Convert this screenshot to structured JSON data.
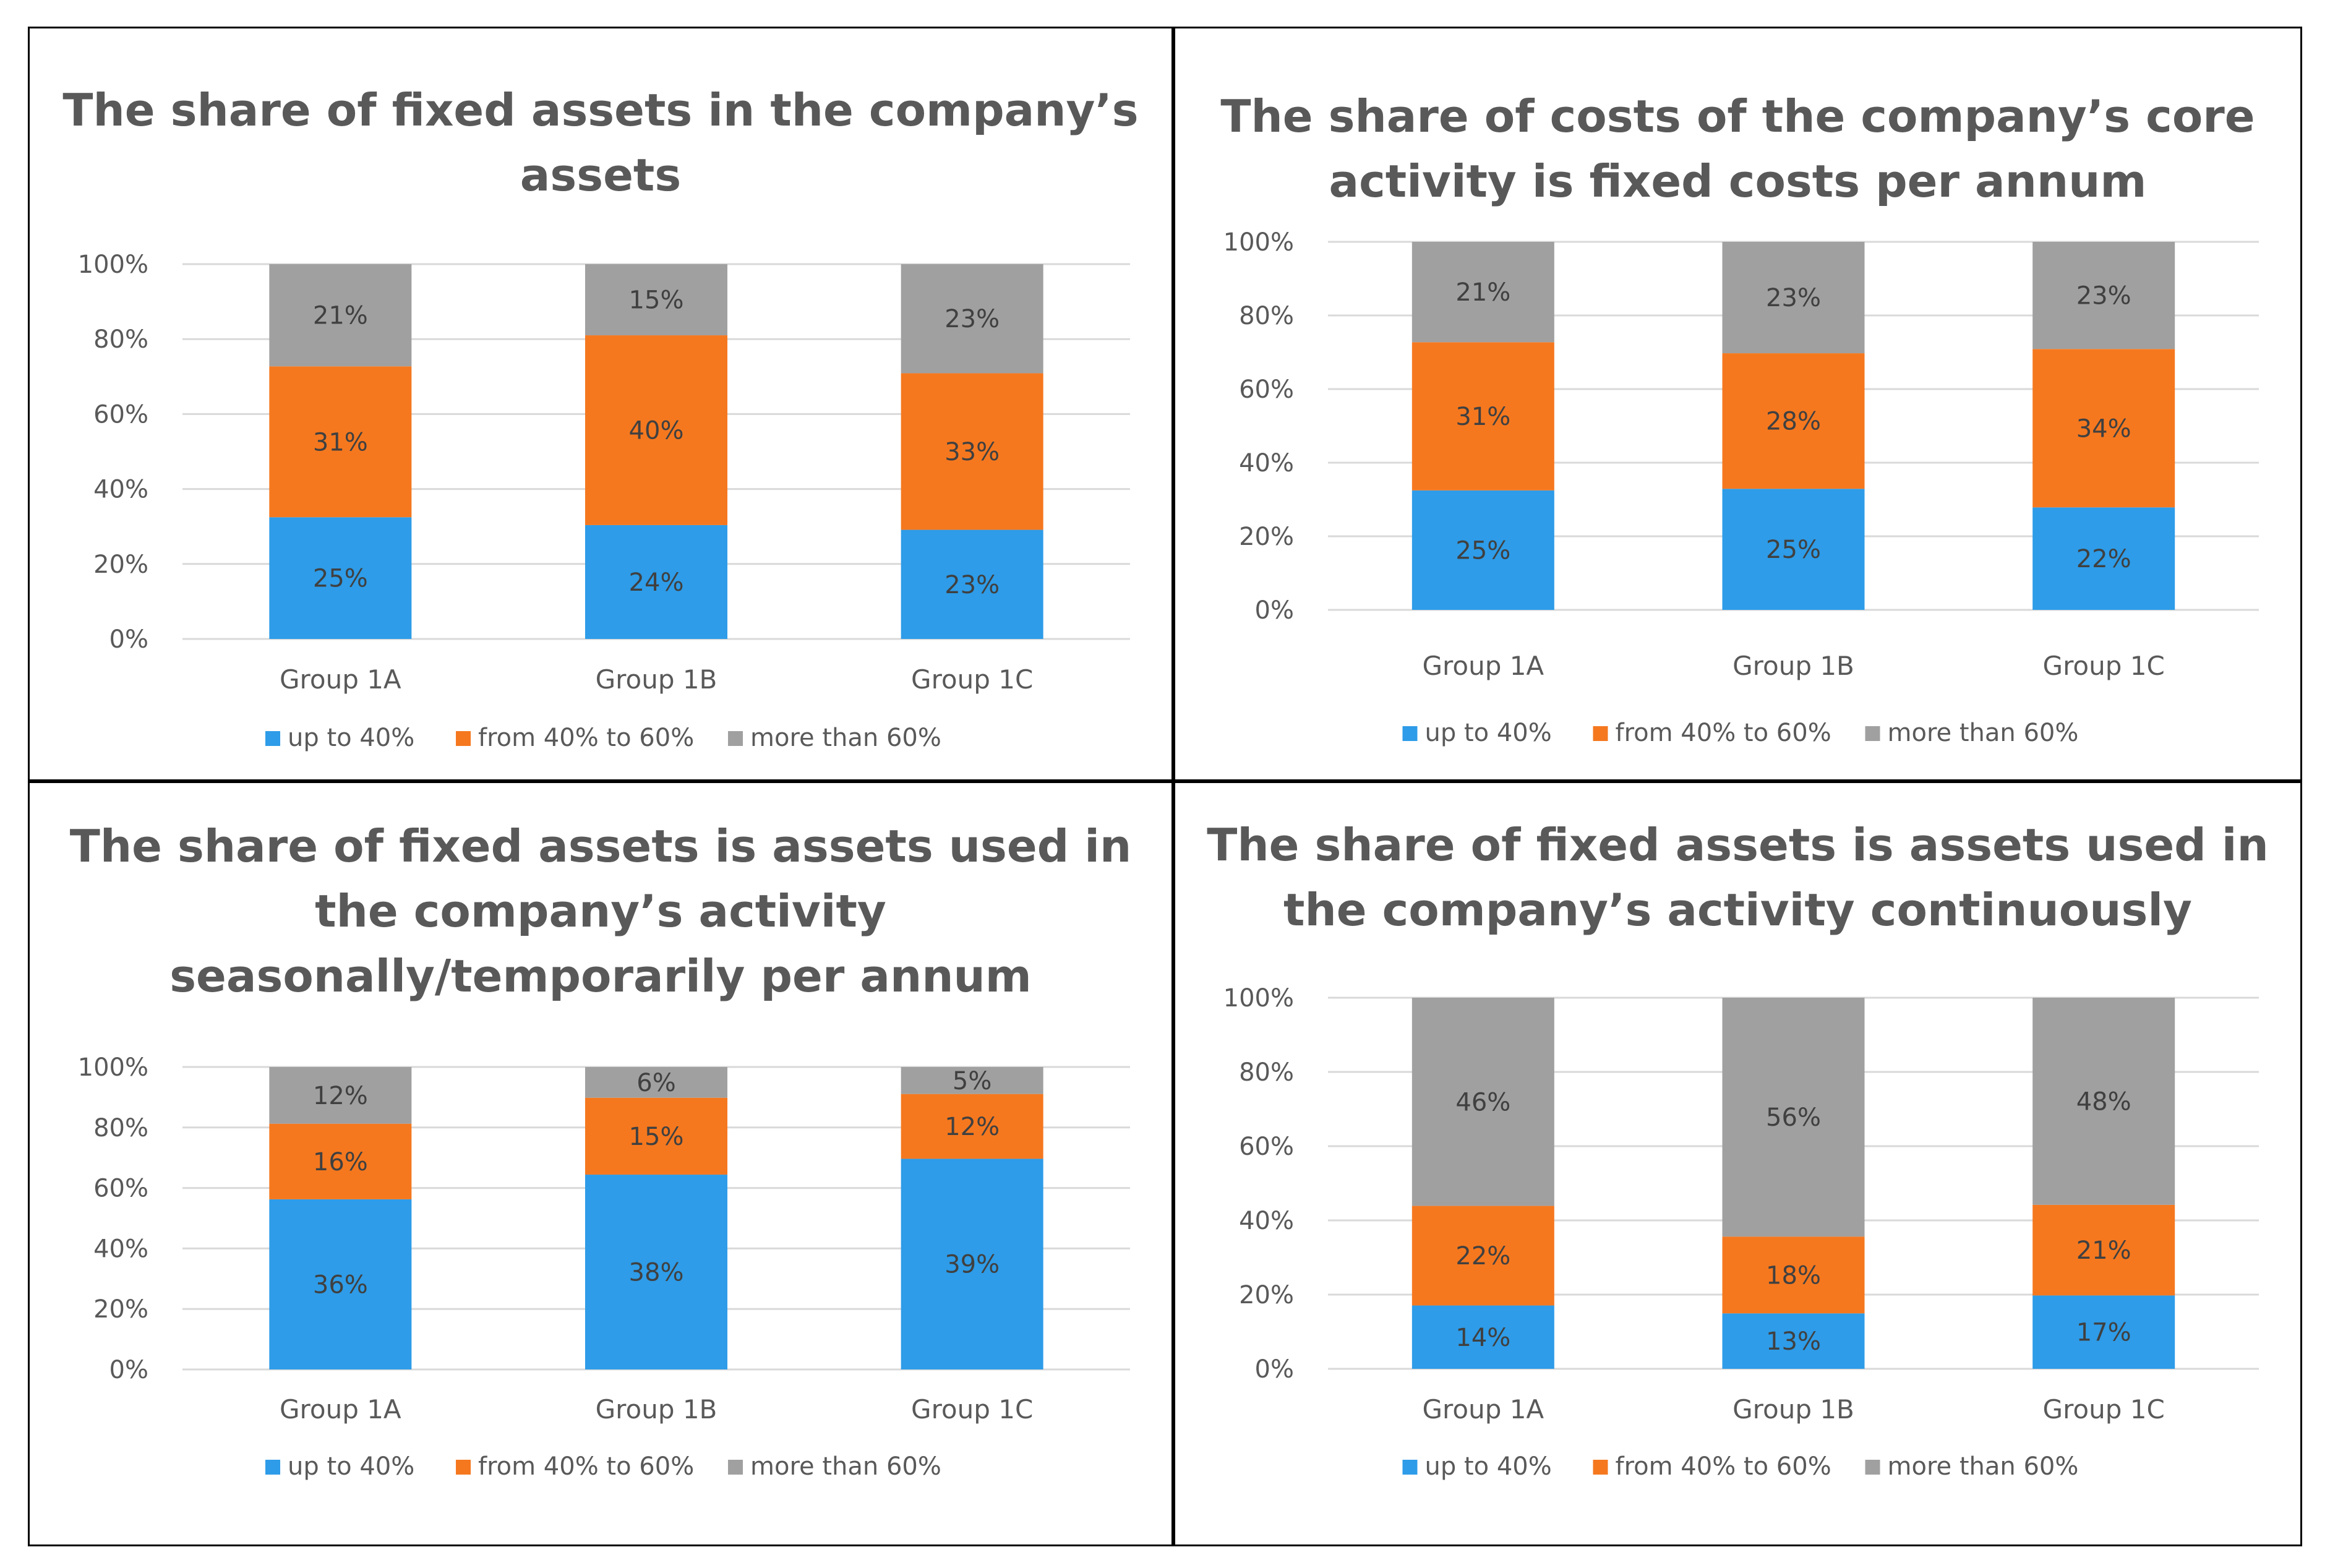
{
  "colors": {
    "up_to_40": "#2E9CE8",
    "from_40_to_60": "#F5781F",
    "more_than_60": "#A0A0A0",
    "gridline": "#D9D9D9",
    "border": "#000000"
  },
  "legend_labels": [
    "up to 40%",
    "from 40% to 60%",
    "more than 60%"
  ],
  "chart_data": [
    {
      "type": "bar",
      "stacked": "percent",
      "title": [
        "The share of fixed assets in the company’s",
        "assets"
      ],
      "categories": [
        "Group 1A",
        "Group 1B",
        "Group 1C"
      ],
      "yticks": [
        "0%",
        "20%",
        "40%",
        "60%",
        "80%",
        "100%"
      ],
      "ylim": [
        0,
        100
      ],
      "grid": true,
      "legend": "bottom",
      "series": [
        {
          "name": "up to 40%",
          "values": [
            25,
            24,
            23
          ],
          "labels": [
            "25%",
            "24%",
            "23%"
          ]
        },
        {
          "name": "from 40% to 60%",
          "values": [
            31,
            40,
            33
          ],
          "labels": [
            "31%",
            "40%",
            "33%"
          ]
        },
        {
          "name": "more than 60%",
          "values": [
            21,
            15,
            23
          ],
          "labels": [
            "21%",
            "15%",
            "23%"
          ]
        }
      ]
    },
    {
      "type": "bar",
      "stacked": "percent",
      "title": [
        "The share of costs of the company’s core",
        "activity is fixed costs per annum"
      ],
      "categories": [
        "Group 1A",
        "Group 1B",
        "Group 1C"
      ],
      "yticks": [
        "0%",
        "20%",
        "40%",
        "60%",
        "80%",
        "100%"
      ],
      "ylim": [
        0,
        100
      ],
      "grid": true,
      "legend": "bottom",
      "series": [
        {
          "name": "up to 40%",
          "values": [
            25,
            25,
            22
          ],
          "labels": [
            "25%",
            "25%",
            "22%"
          ]
        },
        {
          "name": "from 40% to 60%",
          "values": [
            31,
            28,
            34
          ],
          "labels": [
            "31%",
            "28%",
            "34%"
          ]
        },
        {
          "name": "more than 60%",
          "values": [
            21,
            23,
            23
          ],
          "labels": [
            "21%",
            "23%",
            "23%"
          ]
        }
      ]
    },
    {
      "type": "bar",
      "stacked": "percent",
      "title": [
        "The share of fixed assets is assets used in",
        "the company’s activity",
        "seasonally/temporarily  per annum"
      ],
      "categories": [
        "Group 1A",
        "Group 1B",
        "Group 1C"
      ],
      "yticks": [
        "0%",
        "20%",
        "40%",
        "60%",
        "80%",
        "100%"
      ],
      "ylim": [
        0,
        100
      ],
      "grid": true,
      "legend": "bottom",
      "series": [
        {
          "name": "up to 40%",
          "values": [
            36,
            38,
            39
          ],
          "labels": [
            "36%",
            "38%",
            "39%"
          ]
        },
        {
          "name": "from 40% to 60%",
          "values": [
            16,
            15,
            12
          ],
          "labels": [
            "16%",
            "15%",
            "12%"
          ]
        },
        {
          "name": "more than 60%",
          "values": [
            12,
            6,
            5
          ],
          "labels": [
            "12%",
            "6%",
            "5%"
          ]
        }
      ]
    },
    {
      "type": "bar",
      "stacked": "percent",
      "title": [
        "The share of fixed assets is assets used in",
        "the company’s activity continuously"
      ],
      "categories": [
        "Group 1A",
        "Group 1B",
        "Group 1C"
      ],
      "yticks": [
        "0%",
        "20%",
        "40%",
        "60%",
        "80%",
        "100%"
      ],
      "ylim": [
        0,
        100
      ],
      "grid": true,
      "legend": "bottom",
      "series": [
        {
          "name": "up to 40%",
          "values": [
            14,
            13,
            17
          ],
          "labels": [
            "14%",
            "13%",
            "17%"
          ]
        },
        {
          "name": "from 40% to 60%",
          "values": [
            22,
            18,
            21
          ],
          "labels": [
            "22%",
            "18%",
            "21%"
          ]
        },
        {
          "name": "more than 60%",
          "values": [
            46,
            56,
            48
          ],
          "labels": [
            "46%",
            "56%",
            "48%"
          ]
        }
      ]
    }
  ]
}
